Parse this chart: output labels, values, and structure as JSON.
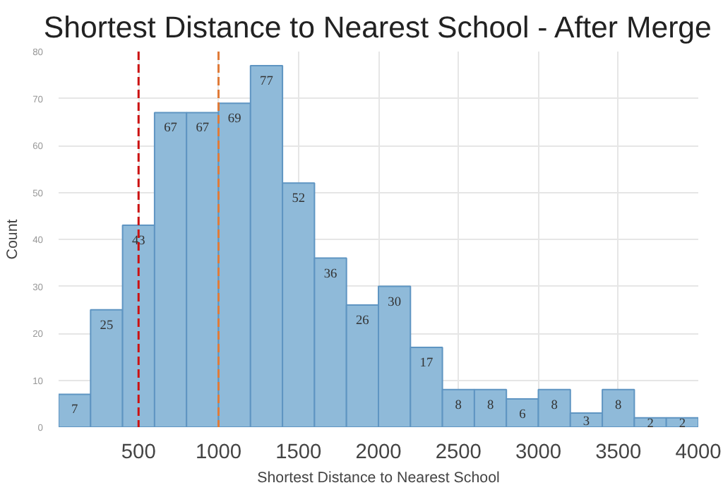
{
  "chart_data": {
    "type": "histogram",
    "title": "Shortest Distance to Nearest School - After Merge",
    "xlabel": "Shortest Distance to Nearest School",
    "ylabel": "Count",
    "bins": [
      0,
      200,
      400,
      600,
      800,
      1000,
      1200,
      1400,
      1600,
      1800,
      2000,
      2200,
      2400,
      2600,
      2800,
      3000,
      3200,
      3400,
      3600,
      3800,
      4000
    ],
    "values": [
      7,
      25,
      43,
      67,
      67,
      69,
      77,
      52,
      36,
      26,
      30,
      17,
      8,
      8,
      6,
      8,
      3,
      8,
      2,
      2
    ],
    "color": "#8fbad9",
    "data_labels": true,
    "xlim": [
      0,
      4000
    ],
    "xticks": [
      500,
      1000,
      1500,
      2000,
      2500,
      3000,
      3500,
      4000
    ],
    "ylim": [
      0,
      80
    ],
    "yticks": [
      0,
      10,
      20,
      30,
      40,
      50,
      60,
      70,
      80
    ],
    "grid": true,
    "ref_lines": [
      {
        "axis": "x",
        "value": 500,
        "color": "#cc1111",
        "line_style": "dashed"
      },
      {
        "axis": "x",
        "value": 1000,
        "color": "#e07b39",
        "line_style": "dashed"
      }
    ]
  }
}
